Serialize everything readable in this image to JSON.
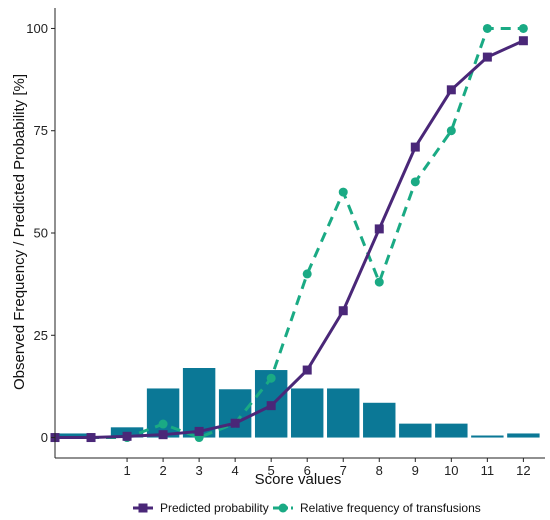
{
  "chart_data": {
    "type": "line",
    "title": "",
    "xlabel": "Score values",
    "ylabel": "Observed Frequency / Predicted Probability [%]",
    "xlim": [
      -1,
      12.6
    ],
    "ylim": [
      -5,
      105
    ],
    "x_ticks": [
      1,
      2,
      3,
      4,
      5,
      6,
      7,
      8,
      9,
      10,
      11,
      12
    ],
    "y_ticks": [
      0,
      25,
      50,
      75,
      100
    ],
    "grid": false,
    "legend_position": "bottom",
    "colors": {
      "bars": "#0b7896",
      "predicted": "#4a2778",
      "observed": "#1aaa84"
    },
    "bars": {
      "x": [
        -0.5,
        1,
        2,
        3,
        4,
        5,
        6,
        7,
        8,
        9,
        10,
        11,
        12
      ],
      "width": 0.9,
      "values": [
        1,
        2.5,
        12,
        17,
        11.8,
        16.5,
        12,
        12,
        8.5,
        3.4,
        3.4,
        0.5,
        1
      ]
    },
    "series": [
      {
        "name": "Predicted probability",
        "marker": "square",
        "line": "solid",
        "x": [
          -1,
          0,
          1,
          2,
          3,
          4,
          5,
          6,
          7,
          8,
          9,
          10,
          11,
          12
        ],
        "values": [
          0,
          0,
          0.3,
          0.7,
          1.5,
          3.5,
          7.8,
          16.5,
          31,
          51,
          71,
          85,
          93,
          97
        ]
      },
      {
        "name": "Relative frequency of transfusions",
        "marker": "circle",
        "line": "dashed",
        "x": [
          -1,
          0,
          1,
          2,
          3,
          4,
          5,
          6,
          7,
          8,
          9,
          10,
          11,
          12
        ],
        "values": [
          0,
          0,
          0,
          3.3,
          0,
          3.5,
          14.5,
          40,
          60,
          38,
          62.5,
          75,
          100,
          100
        ]
      }
    ]
  }
}
